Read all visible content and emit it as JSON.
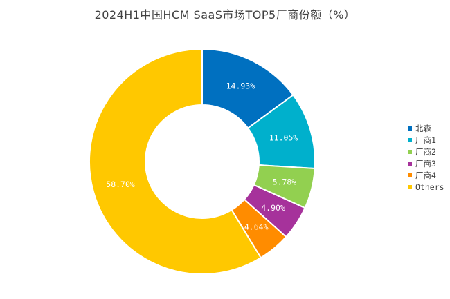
{
  "chart_data": {
    "type": "pie",
    "variant": "donut",
    "title": "2024H1中国HCM SaaS市场TOP5厂商份额（%）",
    "categories": [
      "北森",
      "厂商1",
      "厂商2",
      "厂商3",
      "厂商4",
      "Others"
    ],
    "values": [
      14.93,
      11.05,
      5.78,
      4.9,
      4.64,
      58.7
    ],
    "data_labels": [
      "14.93%",
      "11.05%",
      "5.78%",
      "4.90%",
      "4.64%",
      "58.70%"
    ],
    "colors": [
      "#0070C0",
      "#00B0CC",
      "#92D050",
      "#A6329B",
      "#FF8C00",
      "#FFC800"
    ],
    "legend_position": "right"
  }
}
